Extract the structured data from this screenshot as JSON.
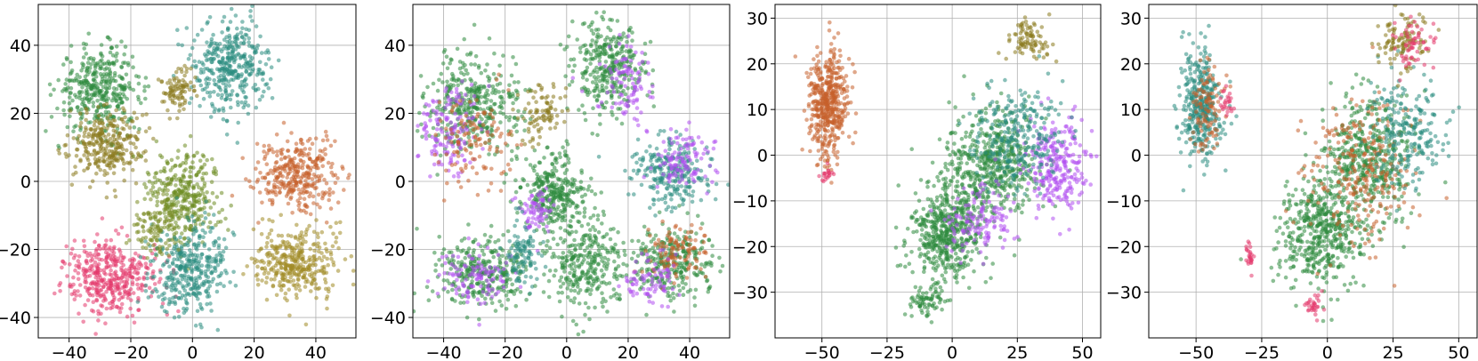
{
  "chart_data": [
    {
      "type": "scatter",
      "title": "",
      "xlabel": "",
      "ylabel": "",
      "xlim": [
        -50,
        53
      ],
      "ylim": [
        -46,
        52
      ],
      "xticks": [
        -40,
        -20,
        0,
        20,
        40
      ],
      "yticks": [
        -40,
        -20,
        0,
        20,
        40
      ],
      "xtick_labels": [
        "−40",
        "−20",
        "0",
        "20",
        "40"
      ],
      "ytick_labels": [
        "−40",
        "−20",
        "0",
        "20",
        "40"
      ],
      "grid": true,
      "legend": "none",
      "point_alpha": 0.55,
      "clusters": [
        {
          "color": "#2e8b3e",
          "center": [
            -30,
            27
          ],
          "spread": [
            9,
            8
          ],
          "count": 380
        },
        {
          "color": "#8a7a1e",
          "center": [
            -28,
            11
          ],
          "spread": [
            8,
            7
          ],
          "count": 300
        },
        {
          "color": "#2a8c80",
          "center": [
            13,
            34
          ],
          "spread": [
            8,
            9
          ],
          "count": 380
        },
        {
          "color": "#6d8c22",
          "center": [
            -3,
            -4
          ],
          "spread": [
            8,
            9
          ],
          "count": 340
        },
        {
          "color": "#c6612c",
          "center": [
            34,
            2
          ],
          "spread": [
            9,
            7
          ],
          "count": 340
        },
        {
          "color": "#e3386b",
          "center": [
            -27,
            -28
          ],
          "spread": [
            10,
            7
          ],
          "count": 400
        },
        {
          "color": "#2a8c80",
          "center": [
            -1,
            -26
          ],
          "spread": [
            8,
            9
          ],
          "count": 360
        },
        {
          "color": "#a08a24",
          "center": [
            34,
            -24
          ],
          "spread": [
            9,
            7
          ],
          "count": 360
        },
        {
          "color": "#7a8a22",
          "center": [
            -12,
            -13
          ],
          "spread": [
            5,
            6
          ],
          "count": 110
        },
        {
          "color": "#8a7a1e",
          "center": [
            -5,
            27
          ],
          "spread": [
            4,
            4
          ],
          "count": 90
        }
      ]
    },
    {
      "type": "scatter",
      "title": "",
      "xlabel": "",
      "ylabel": "",
      "xlim": [
        -50,
        53
      ],
      "ylim": [
        -46,
        52
      ],
      "xticks": [
        -40,
        -20,
        0,
        20,
        40
      ],
      "yticks": [
        -40,
        -20,
        0,
        20,
        40
      ],
      "xtick_labels": [
        "−40",
        "−20",
        "0",
        "20",
        "40"
      ],
      "ytick_labels": [
        "−40",
        "−20",
        "0",
        "20",
        "40"
      ],
      "grid": true,
      "legend": "none",
      "point_alpha": 0.55,
      "clusters": [
        {
          "color": "#2e8b3e",
          "center": [
            -30,
            22
          ],
          "spread": [
            10,
            10
          ],
          "count": 380
        },
        {
          "color": "#b14ef0",
          "center": [
            -38,
            15
          ],
          "spread": [
            7,
            9
          ],
          "count": 150
        },
        {
          "color": "#c6612c",
          "center": [
            -30,
            12
          ],
          "spread": [
            8,
            8
          ],
          "count": 120
        },
        {
          "color": "#2e8b3e",
          "center": [
            13,
            33
          ],
          "spread": [
            8,
            9
          ],
          "count": 330
        },
        {
          "color": "#b14ef0",
          "center": [
            20,
            28
          ],
          "spread": [
            6,
            8
          ],
          "count": 100
        },
        {
          "color": "#2e8b3e",
          "center": [
            -4,
            -3
          ],
          "spread": [
            7,
            8
          ],
          "count": 320
        },
        {
          "color": "#b14ef0",
          "center": [
            -10,
            -9
          ],
          "spread": [
            4,
            5
          ],
          "count": 70
        },
        {
          "color": "#2a8c80",
          "center": [
            34,
            3
          ],
          "spread": [
            9,
            7
          ],
          "count": 250
        },
        {
          "color": "#b14ef0",
          "center": [
            38,
            6
          ],
          "spread": [
            6,
            6
          ],
          "count": 110
        },
        {
          "color": "#2e8b3e",
          "center": [
            -28,
            -27
          ],
          "spread": [
            10,
            7
          ],
          "count": 320
        },
        {
          "color": "#b14ef0",
          "center": [
            -30,
            -28
          ],
          "spread": [
            9,
            6
          ],
          "count": 110
        },
        {
          "color": "#2a8c80",
          "center": [
            -14,
            -22
          ],
          "spread": [
            4,
            6
          ],
          "count": 100
        },
        {
          "color": "#2e8b3e",
          "center": [
            6,
            -25
          ],
          "spread": [
            8,
            9
          ],
          "count": 300
        },
        {
          "color": "#2e8b3e",
          "center": [
            34,
            -24
          ],
          "spread": [
            9,
            7
          ],
          "count": 300
        },
        {
          "color": "#c6612c",
          "center": [
            36,
            -21
          ],
          "spread": [
            6,
            5
          ],
          "count": 110
        },
        {
          "color": "#b14ef0",
          "center": [
            28,
            -30
          ],
          "spread": [
            7,
            5
          ],
          "count": 80
        },
        {
          "color": "#8a7a1e",
          "center": [
            -8,
            20
          ],
          "spread": [
            6,
            6
          ],
          "count": 90
        }
      ]
    },
    {
      "type": "scatter",
      "title": "",
      "xlabel": "",
      "ylabel": "",
      "xlim": [
        -68,
        57
      ],
      "ylim": [
        -40,
        33
      ],
      "xticks": [
        -50,
        -25,
        0,
        25,
        50
      ],
      "yticks": [
        -30,
        -20,
        -10,
        0,
        10,
        20,
        30
      ],
      "xtick_labels": [
        "−50",
        "−25",
        "0",
        "25",
        "50"
      ],
      "ytick_labels": [
        "−30",
        "−20",
        "−10",
        "0",
        "10",
        "20",
        "30"
      ],
      "grid": true,
      "legend": "none",
      "point_alpha": 0.55,
      "clusters": [
        {
          "color": "#c6612c",
          "center": [
            -48,
            11
          ],
          "spread": [
            5,
            8
          ],
          "count": 480
        },
        {
          "color": "#e3386b",
          "center": [
            -48,
            -4
          ],
          "spread": [
            2,
            1.5
          ],
          "count": 20
        },
        {
          "color": "#2e8b3e",
          "center": [
            -2,
            -17
          ],
          "spread": [
            10,
            7
          ],
          "count": 520
        },
        {
          "color": "#2e8b3e",
          "center": [
            15,
            -2
          ],
          "spread": [
            12,
            8
          ],
          "count": 520
        },
        {
          "color": "#b14ef0",
          "center": [
            40,
            -2
          ],
          "spread": [
            7,
            7
          ],
          "count": 260
        },
        {
          "color": "#2a8c80",
          "center": [
            25,
            4
          ],
          "spread": [
            12,
            8
          ],
          "count": 260
        },
        {
          "color": "#8a7a1e",
          "center": [
            30,
            25
          ],
          "spread": [
            5,
            3
          ],
          "count": 90
        },
        {
          "color": "#b14ef0",
          "center": [
            10,
            -14
          ],
          "spread": [
            8,
            5
          ],
          "count": 130
        },
        {
          "color": "#2e8b3e",
          "center": [
            -10,
            -32
          ],
          "spread": [
            5,
            2
          ],
          "count": 70
        }
      ]
    },
    {
      "type": "scatter",
      "title": "",
      "xlabel": "",
      "ylabel": "",
      "xlim": [
        -68,
        57
      ],
      "ylim": [
        -40,
        33
      ],
      "xticks": [
        -50,
        -25,
        0,
        25,
        50
      ],
      "yticks": [
        -30,
        -20,
        -10,
        0,
        10,
        20,
        30
      ],
      "xtick_labels": [
        "−50",
        "−25",
        "0",
        "25",
        "50"
      ],
      "ytick_labels": [
        "−30",
        "−20",
        "−10",
        "0",
        "10",
        "20",
        "30"
      ],
      "grid": true,
      "legend": "none",
      "point_alpha": 0.55,
      "clusters": [
        {
          "color": "#2a8c80",
          "center": [
            -48,
            11
          ],
          "spread": [
            5,
            8
          ],
          "count": 380
        },
        {
          "color": "#c6612c",
          "center": [
            -46,
            10
          ],
          "spread": [
            4,
            7
          ],
          "count": 100
        },
        {
          "color": "#e3386b",
          "center": [
            -38,
            11
          ],
          "spread": [
            2,
            2
          ],
          "count": 25
        },
        {
          "color": "#2e8b3e",
          "center": [
            -2,
            -17
          ],
          "spread": [
            11,
            8
          ],
          "count": 480
        },
        {
          "color": "#2e8b3e",
          "center": [
            15,
            -1
          ],
          "spread": [
            12,
            9
          ],
          "count": 460
        },
        {
          "color": "#c6612c",
          "center": [
            12,
            -4
          ],
          "spread": [
            14,
            11
          ],
          "count": 260
        },
        {
          "color": "#2a8c80",
          "center": [
            30,
            5
          ],
          "spread": [
            10,
            8
          ],
          "count": 220
        },
        {
          "color": "#8a7a1e",
          "center": [
            28,
            25
          ],
          "spread": [
            6,
            4
          ],
          "count": 110
        },
        {
          "color": "#e3386b",
          "center": [
            32,
            24
          ],
          "spread": [
            5,
            4
          ],
          "count": 60
        },
        {
          "color": "#e3386b",
          "center": [
            -30,
            -22
          ],
          "spread": [
            1,
            2
          ],
          "count": 25
        },
        {
          "color": "#e3386b",
          "center": [
            -5,
            -33
          ],
          "spread": [
            3,
            2
          ],
          "count": 30
        }
      ]
    }
  ]
}
